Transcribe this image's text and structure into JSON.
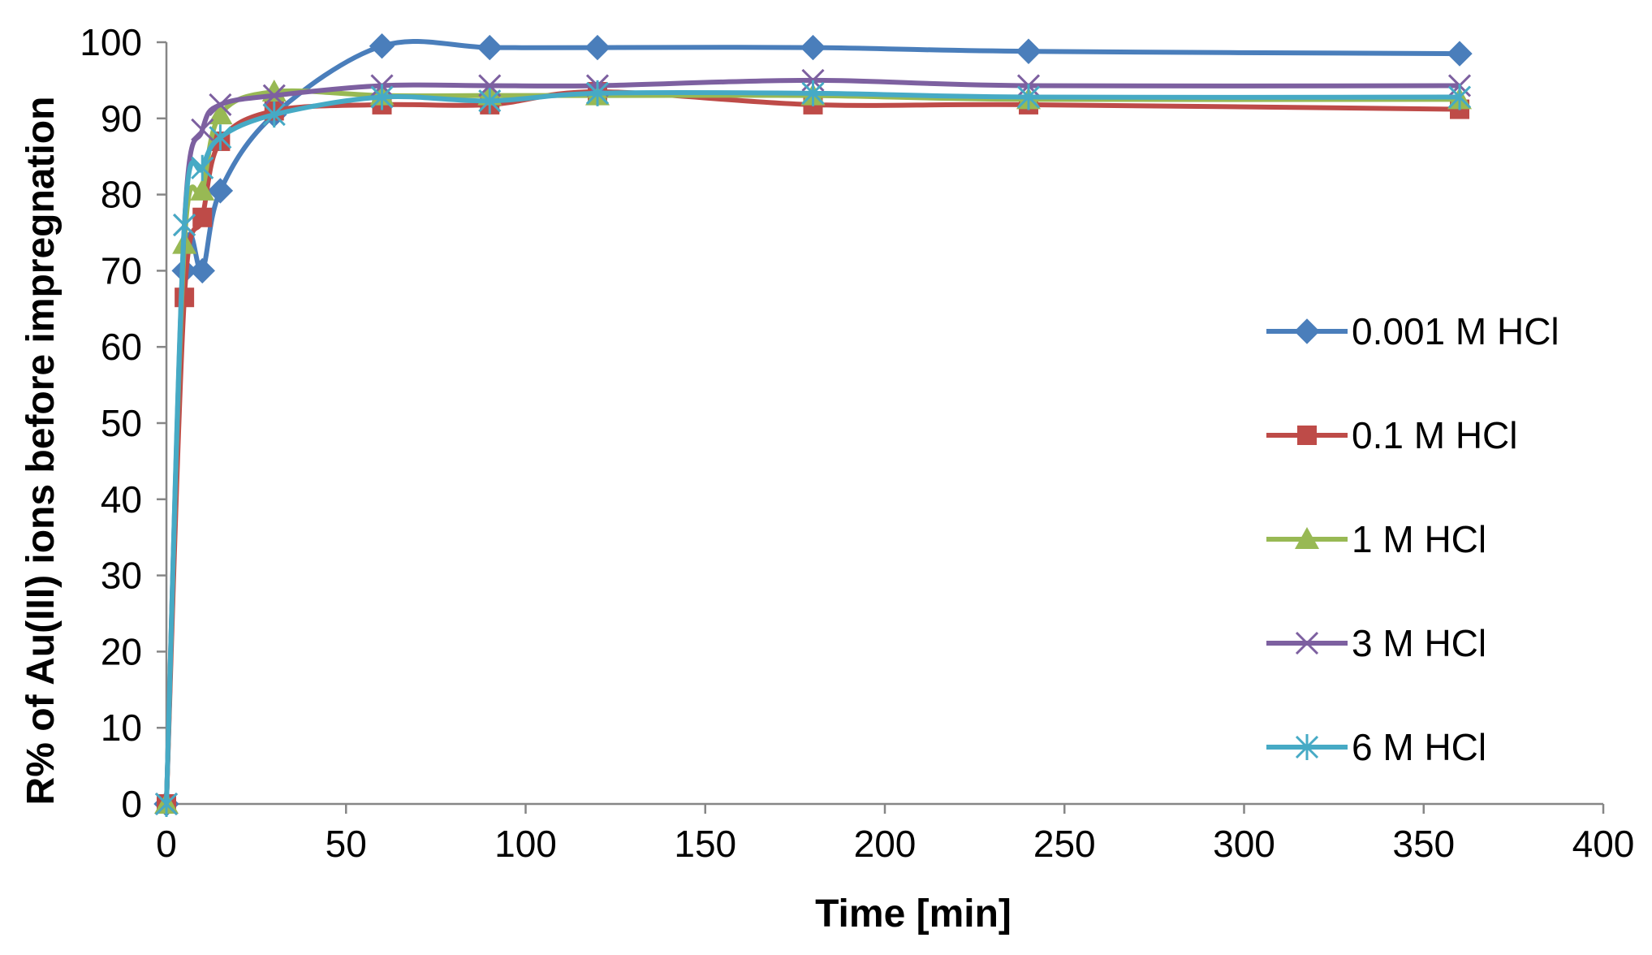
{
  "chart_data": {
    "type": "line",
    "title": "",
    "xlabel": "Time [min]",
    "ylabel": "R% of Au(III) ions before impregnation",
    "xlim": [
      0,
      400
    ],
    "ylim": [
      0,
      100
    ],
    "xticks": [
      "0",
      "50",
      "100",
      "150",
      "200",
      "250",
      "300",
      "350",
      "400"
    ],
    "yticks": [
      "0",
      "10",
      "20",
      "30",
      "40",
      "50",
      "60",
      "70",
      "80",
      "90",
      "100"
    ],
    "grid": false,
    "legend_position": "right",
    "x": [
      0,
      5,
      10,
      15,
      30,
      60,
      90,
      120,
      180,
      240,
      360
    ],
    "series": [
      {
        "name": "0.001 M HCl",
        "color": "#4a7ebb",
        "marker": "diamond",
        "values": [
          0,
          70,
          70,
          80.5,
          90.5,
          99.5,
          99.3,
          99.3,
          99.3,
          98.8,
          98.5
        ]
      },
      {
        "name": "0.1 M HCl",
        "color": "#be4b48",
        "marker": "square",
        "values": [
          0,
          66.5,
          77,
          87,
          91,
          91.8,
          91.8,
          93.5,
          91.8,
          91.8,
          91.2
        ]
      },
      {
        "name": "1 M HCl",
        "color": "#98b954",
        "marker": "triangle",
        "values": [
          0,
          73.5,
          80.5,
          90.5,
          93.5,
          93,
          93,
          93,
          93,
          92.5,
          92.5
        ]
      },
      {
        "name": "3 M HCl",
        "color": "#7d60a0",
        "marker": "x",
        "values": [
          0,
          76,
          88.5,
          91.8,
          93,
          94.3,
          94.3,
          94.3,
          95,
          94.3,
          94.3
        ]
      },
      {
        "name": "6 M HCl",
        "color": "#46aac5",
        "marker": "asterisk",
        "values": [
          0,
          76,
          83.5,
          87.5,
          90.5,
          92.8,
          92.3,
          93.3,
          93.3,
          92.8,
          92.8
        ]
      }
    ]
  }
}
